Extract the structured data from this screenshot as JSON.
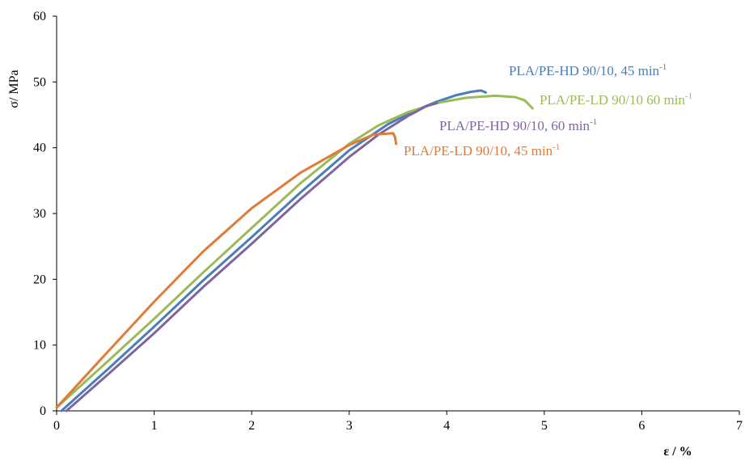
{
  "chart_data": {
    "type": "line",
    "xlabel": "ε / %",
    "ylabel": "σ/ MPa",
    "xlim": [
      0,
      7
    ],
    "ylim": [
      0,
      60
    ],
    "x_ticks": [
      "0",
      "1",
      "2",
      "3",
      "4",
      "5",
      "6",
      "7"
    ],
    "y_ticks": [
      "0",
      "10",
      "20",
      "30",
      "40",
      "50",
      "60"
    ],
    "grid": false,
    "series": [
      {
        "name": "PLA/PE-HD 90/10, 45 min",
        "name_sup": "-1",
        "color": "#4a7ebb",
        "x": [
          0.05,
          0.5,
          1.0,
          1.5,
          2.0,
          2.5,
          3.0,
          3.4,
          3.7,
          3.9,
          4.1,
          4.25,
          4.35,
          4.4
        ],
        "y": [
          0,
          6.0,
          12.8,
          19.8,
          26.4,
          33.2,
          39.6,
          43.6,
          45.8,
          47.0,
          48.0,
          48.5,
          48.7,
          48.4
        ]
      },
      {
        "name": "PLA/PE-LD 90/10 60 min",
        "name_sup": "-1",
        "color": "#9bbb59",
        "x": [
          0.0,
          0.5,
          1.0,
          1.5,
          2.0,
          2.5,
          3.0,
          3.3,
          3.6,
          3.9,
          4.2,
          4.5,
          4.7,
          4.8,
          4.88
        ],
        "y": [
          0.5,
          7.2,
          14.0,
          21.0,
          27.8,
          34.6,
          40.6,
          43.4,
          45.4,
          46.8,
          47.6,
          47.9,
          47.7,
          47.2,
          46.0
        ]
      },
      {
        "name": "PLA/PE-HD 90/10, 60 min",
        "name_sup": "-1",
        "color": "#8064a2",
        "x": [
          0.1,
          0.5,
          1.0,
          1.5,
          2.0,
          2.5,
          3.0,
          3.3,
          3.6,
          3.8,
          3.9
        ],
        "y": [
          0,
          5.2,
          11.8,
          18.8,
          25.4,
          32.2,
          38.6,
          42.0,
          44.8,
          46.4,
          46.8
        ]
      },
      {
        "name": "PLA/PE-LD 90/10, 45 min",
        "name_sup": "-1",
        "color": "#e07b39",
        "x": [
          0.0,
          0.5,
          1.0,
          1.5,
          2.0,
          2.5,
          3.0,
          3.25,
          3.45,
          3.47,
          3.48
        ],
        "y": [
          0.5,
          8.6,
          16.6,
          24.2,
          30.8,
          36.2,
          40.4,
          42.0,
          42.2,
          41.6,
          40.6
        ]
      }
    ]
  }
}
